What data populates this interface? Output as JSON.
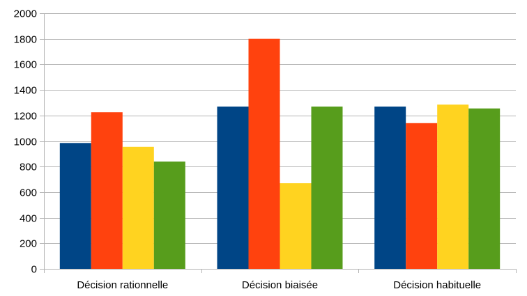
{
  "chart_data": {
    "type": "bar",
    "categories": [
      "Décision rationnelle",
      "Décision biaisée",
      "Décision habituelle"
    ],
    "series": [
      {
        "color": "#004586",
        "values": [
          985,
          1270,
          1270
        ]
      },
      {
        "color": "#ff420e",
        "values": [
          1225,
          1800,
          1140
        ]
      },
      {
        "color": "#ffd320",
        "values": [
          955,
          670,
          1285
        ]
      },
      {
        "color": "#579d1c",
        "values": [
          840,
          1270,
          1255
        ]
      }
    ],
    "ylim": [
      0,
      2000
    ],
    "yticks": [
      "0",
      "200",
      "400",
      "600",
      "800",
      "1000",
      "1200",
      "1400",
      "1600",
      "1800",
      "2000"
    ],
    "title": "",
    "xlabel": "",
    "ylabel": "",
    "grid": "horizontal",
    "legend": "none"
  }
}
